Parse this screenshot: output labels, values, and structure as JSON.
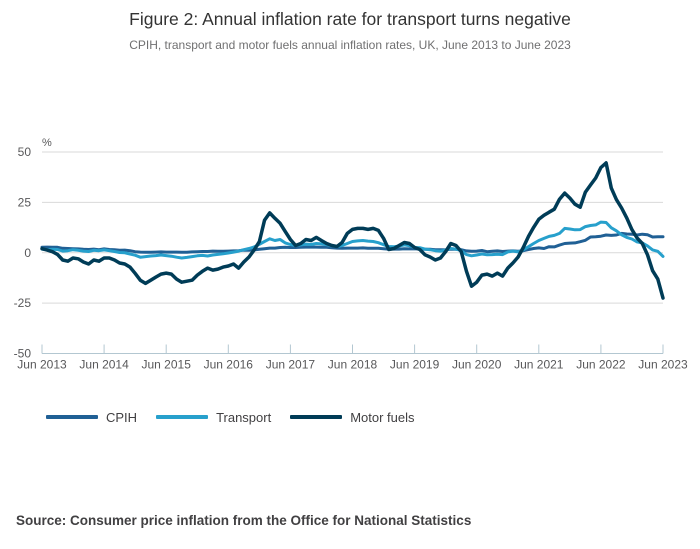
{
  "header": {
    "title": "Figure 2: Annual inflation rate for transport turns negative",
    "subtitle": "CPIH, transport and motor fuels annual inflation rates, UK, June 2013 to June 2023"
  },
  "source_note": "Source: Consumer price inflation from the Office for National Statistics",
  "colors": {
    "cpih": "#206095",
    "transport": "#27A0CC",
    "motor_fuels": "#003C57",
    "gridline": "#d9d9d9",
    "axis": "#b3c7d1",
    "text_dark": "#414042",
    "text_muted": "#707071"
  },
  "chart_data": {
    "type": "line",
    "title": "Figure 2: Annual inflation rate for transport turns negative",
    "subtitle": "CPIH, transport and motor fuels annual inflation rates, UK, June 2013 to June 2023",
    "unit_label": "%",
    "ylabel": "%",
    "xlabel": "",
    "ylim": [
      -50,
      50
    ],
    "y_ticks": [
      "50",
      "25",
      "0",
      "-25",
      "-50"
    ],
    "y_tick_values": [
      50,
      25,
      0,
      -25,
      -50
    ],
    "x_tick_labels": [
      "Jun 2013",
      "Jun 2014",
      "Jun 2015",
      "Jun 2016",
      "Jun 2017",
      "Jun 2018",
      "Jun 2019",
      "Jun 2020",
      "Jun 2021",
      "Jun 2022",
      "Jun 2023"
    ],
    "x_unit": "monthly, June 2013 to June 2023",
    "grid": true,
    "legend_position": "bottom",
    "series": [
      {
        "name": "CPIH",
        "color": "#206095",
        "values": [
          2.7,
          2.8,
          2.7,
          2.7,
          2.2,
          2.1,
          2.0,
          1.9,
          1.7,
          1.6,
          1.8,
          1.5,
          1.9,
          1.6,
          1.5,
          1.2,
          1.3,
          1.0,
          0.5,
          0.3,
          0.2,
          0.2,
          0.3,
          0.4,
          0.3,
          0.3,
          0.3,
          0.2,
          0.2,
          0.4,
          0.5,
          0.6,
          0.6,
          0.8,
          0.7,
          0.7,
          0.8,
          0.9,
          1.0,
          1.3,
          1.2,
          1.4,
          1.7,
          2.0,
          2.3,
          2.3,
          2.6,
          2.7,
          2.6,
          2.6,
          2.7,
          2.8,
          2.8,
          2.8,
          2.7,
          2.7,
          2.5,
          2.3,
          2.2,
          2.3,
          2.3,
          2.3,
          2.4,
          2.2,
          2.2,
          2.2,
          2.0,
          1.8,
          1.8,
          1.8,
          2.0,
          1.9,
          1.9,
          2.0,
          1.7,
          1.7,
          1.5,
          1.5,
          1.4,
          1.8,
          1.7,
          1.5,
          0.9,
          0.7,
          0.8,
          1.1,
          0.5,
          0.7,
          0.9,
          0.6,
          0.8,
          0.9,
          0.7,
          1.0,
          1.6,
          2.1,
          2.4,
          2.1,
          3.0,
          2.9,
          3.8,
          4.6,
          4.8,
          4.9,
          5.5,
          6.2,
          7.8,
          7.9,
          8.2,
          8.8,
          8.6,
          8.8,
          9.6,
          9.3,
          9.2,
          8.8,
          9.2,
          8.9,
          7.8,
          7.9,
          7.9
        ]
      },
      {
        "name": "Transport",
        "color": "#27A0CC",
        "values": [
          1.8,
          1.5,
          1.7,
          1.6,
          0.8,
          1.0,
          1.5,
          1.2,
          0.8,
          0.6,
          1.2,
          1.0,
          1.4,
          1.0,
          0.6,
          0.1,
          0.0,
          -0.6,
          -1.2,
          -2.2,
          -1.9,
          -1.6,
          -1.4,
          -1.1,
          -1.4,
          -1.7,
          -2.2,
          -2.6,
          -2.3,
          -1.9,
          -1.5,
          -1.3,
          -1.6,
          -1.1,
          -0.8,
          -0.5,
          -0.1,
          0.3,
          0.8,
          1.5,
          2.1,
          2.9,
          4.2,
          5.6,
          6.9,
          6.1,
          6.6,
          4.9,
          4.1,
          3.6,
          3.9,
          4.3,
          4.1,
          4.6,
          4.4,
          4.0,
          3.4,
          3.0,
          3.6,
          4.6,
          5.6,
          5.9,
          6.1,
          5.8,
          5.6,
          5.0,
          4.0,
          3.1,
          3.0,
          3.3,
          3.9,
          3.5,
          2.6,
          2.5,
          1.8,
          1.5,
          1.0,
          0.8,
          1.3,
          2.1,
          1.8,
          1.0,
          -0.9,
          -1.5,
          -1.1,
          -0.6,
          -1.0,
          -0.9,
          -0.7,
          -0.9,
          0.4,
          0.8,
          0.4,
          1.4,
          3.0,
          4.6,
          6.1,
          7.1,
          8.1,
          8.6,
          9.6,
          12.1,
          11.8,
          11.4,
          11.5,
          13.0,
          13.5,
          13.8,
          15.2,
          15.0,
          12.4,
          10.9,
          8.9,
          7.6,
          6.8,
          5.4,
          4.9,
          3.4,
          1.4,
          0.7,
          -1.8
        ]
      },
      {
        "name": "Motor fuels",
        "color": "#003C57",
        "values": [
          2.0,
          1.3,
          0.5,
          -0.8,
          -3.6,
          -4.2,
          -2.6,
          -3.0,
          -4.6,
          -5.6,
          -3.6,
          -4.2,
          -2.6,
          -2.6,
          -3.6,
          -5.1,
          -5.6,
          -7.1,
          -10.2,
          -13.6,
          -15.2,
          -13.6,
          -12.1,
          -10.6,
          -10.1,
          -10.6,
          -13.1,
          -14.6,
          -14.1,
          -13.6,
          -11.1,
          -9.2,
          -7.6,
          -8.6,
          -8.1,
          -7.1,
          -6.6,
          -5.6,
          -7.6,
          -4.6,
          -2.1,
          1.4,
          5.6,
          16.1,
          19.8,
          17.1,
          14.6,
          10.6,
          6.6,
          3.6,
          4.6,
          6.6,
          6.1,
          7.6,
          6.1,
          4.6,
          3.6,
          3.1,
          5.1,
          9.6,
          11.6,
          12.1,
          12.1,
          11.6,
          12.1,
          11.1,
          7.1,
          1.6,
          2.1,
          3.6,
          5.1,
          4.6,
          2.6,
          1.6,
          -1.0,
          -2.1,
          -3.6,
          -2.6,
          0.6,
          4.6,
          3.6,
          0.6,
          -9.1,
          -16.6,
          -14.6,
          -11.1,
          -10.6,
          -11.6,
          -10.1,
          -11.6,
          -7.6,
          -5.1,
          -2.1,
          2.6,
          8.1,
          12.6,
          16.6,
          18.6,
          20.1,
          21.6,
          26.6,
          29.6,
          27.1,
          24.1,
          22.6,
          30.1,
          33.6,
          37.1,
          42.3,
          44.6,
          32.1,
          26.4,
          22.2,
          17.2,
          11.5,
          7.3,
          4.6,
          -1.0,
          -8.9,
          -13.1,
          -22.5
        ]
      }
    ]
  }
}
